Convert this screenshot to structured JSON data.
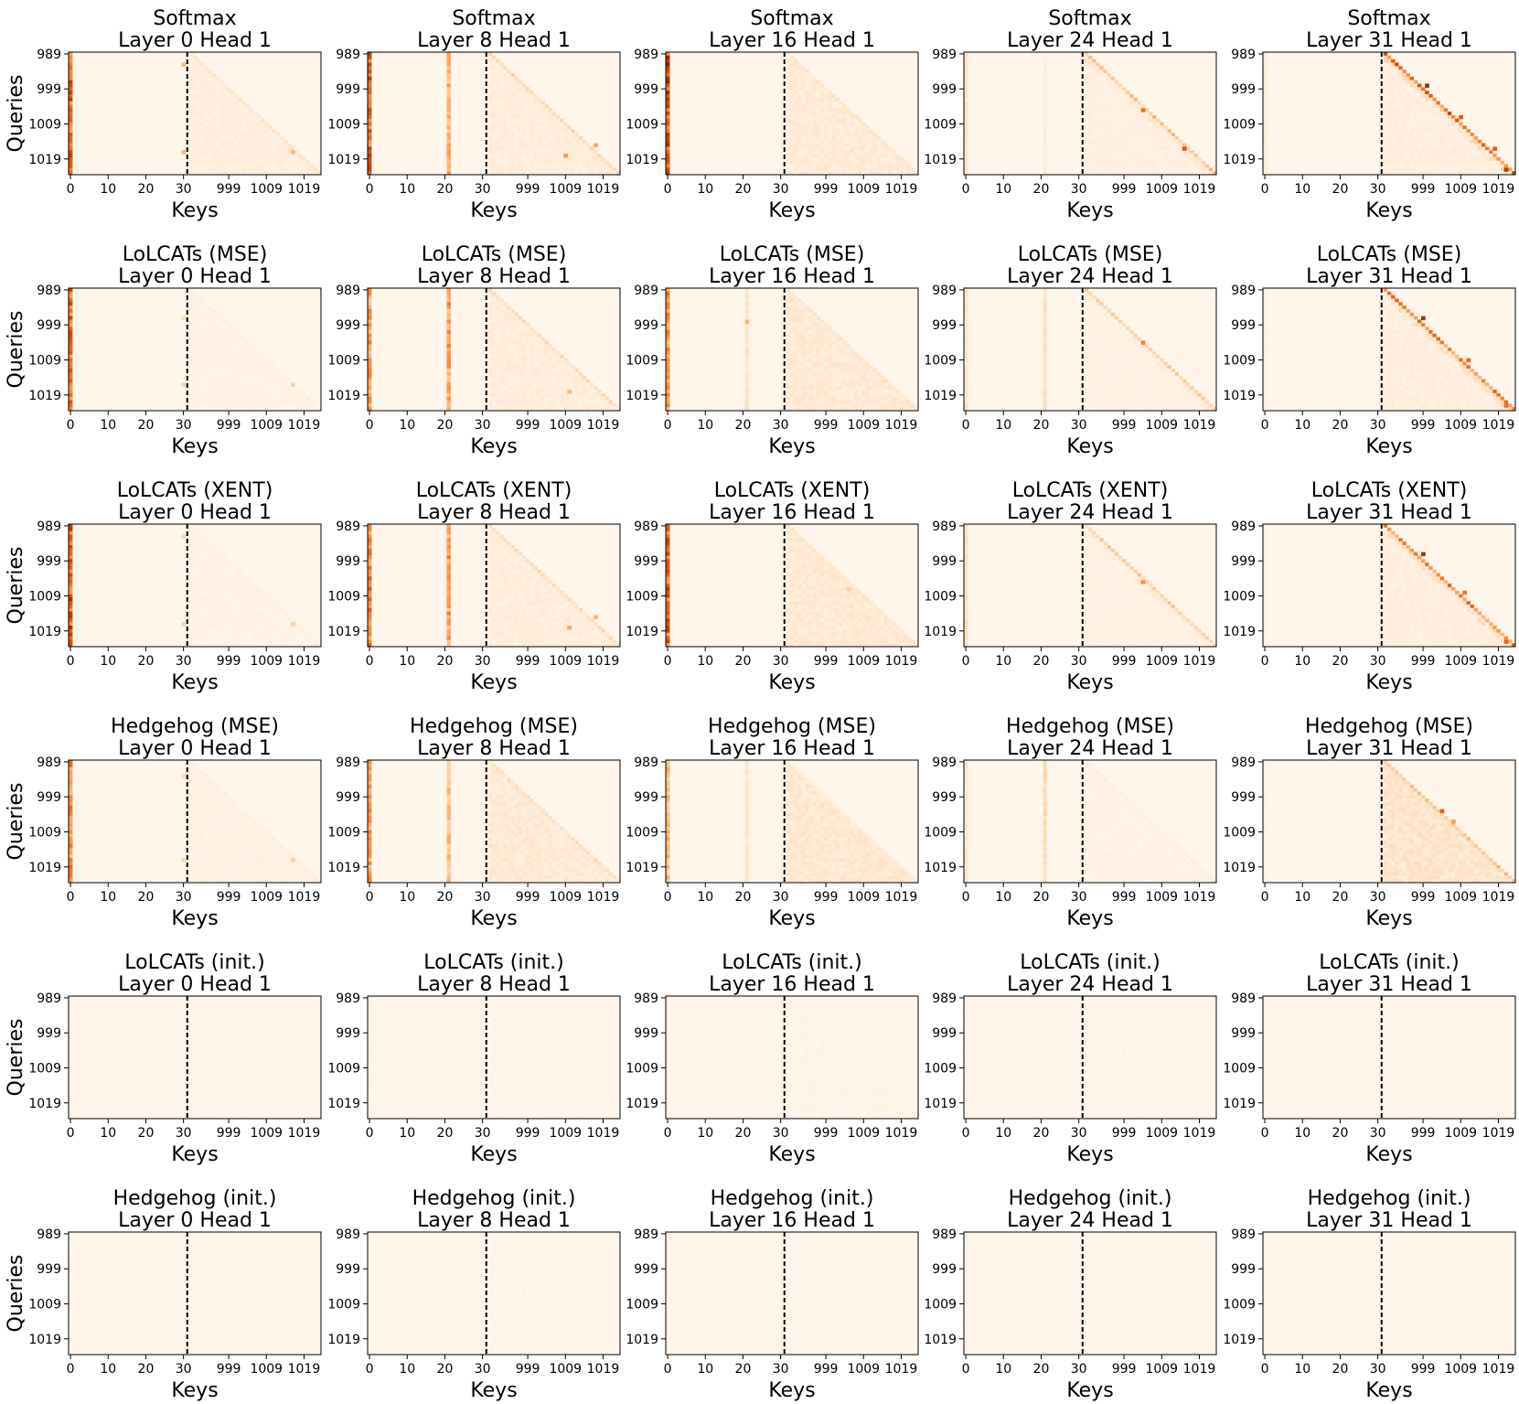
{
  "figure": {
    "colormap": [
      "#fff5eb",
      "#fdd0a2",
      "#fd8d3c",
      "#d94801",
      "#7f2704"
    ],
    "divider_color": "#000000"
  },
  "chart_data": {
    "type": "heatmap",
    "rows": [
      "Softmax",
      "LoLCATs (MSE)",
      "LoLCATs (XENT)",
      "Hedgehog (MSE)",
      "LoLCATs (init.)",
      "Hedgehog (init.)"
    ],
    "cols": [
      "Layer 0 Head 1",
      "Layer 8 Head 1",
      "Layer 16 Head 1",
      "Layer 24 Head 1",
      "Layer 31 Head 1"
    ],
    "xlabel": "Keys",
    "ylabel": "Queries",
    "x_tick_labels": [
      "0",
      "10",
      "20",
      "30",
      "999",
      "1009",
      "1019"
    ],
    "y_tick_labels": [
      "989",
      "999",
      "1009",
      "1019"
    ],
    "key_segments": {
      "sink_keys": [
        0,
        31
      ],
      "recent_keys": [
        989,
        1023
      ]
    },
    "query_range": [
      989,
      1023
    ],
    "divider": "dashed vertical line between sink keys and recent keys",
    "value_scale": "attention weight, 0 (light) to 1 (dark)",
    "panels": [
      [
        {
          "sink": [
            [
              0,
              0.75
            ]
          ],
          "diag": 0.12,
          "spread": 0.05,
          "spots": [
            [
              992,
              30,
              0.35
            ],
            [
              1017,
              30,
              0.35
            ],
            [
              1017,
              1016,
              0.35
            ]
          ]
        },
        {
          "sink": [
            [
              0,
              0.75
            ],
            [
              21,
              0.4
            ]
          ],
          "diag": 0.2,
          "spread": 0.06,
          "spots": [
            [
              1015,
              1017,
              0.4
            ],
            [
              1018,
              1009,
              0.45
            ]
          ]
        },
        {
          "sink": [
            [
              0,
              0.9
            ]
          ],
          "diag": 0.12,
          "spread": 0.08,
          "spots": []
        },
        {
          "sink": [
            [
              0,
              0.12
            ],
            [
              21,
              0.06
            ]
          ],
          "diag": 0.3,
          "spread": 0.04,
          "spots": [
            [
              990,
              32,
              0.95
            ],
            [
              991,
              34,
              0.6
            ],
            [
              1005,
              1004,
              0.6
            ],
            [
              1016,
              1015,
              0.7
            ]
          ]
        },
        {
          "sink": [
            [
              0,
              0.08
            ]
          ],
          "diag": 0.65,
          "spread": 0.05,
          "spots": [
            [
              998,
              1000,
              0.95
            ],
            [
              1007,
              1009,
              0.7
            ],
            [
              1016,
              1018,
              0.7
            ],
            [
              1022,
              1021,
              0.85
            ]
          ]
        }
      ],
      [
        {
          "sink": [
            [
              0,
              0.7
            ]
          ],
          "diag": 0.04,
          "spread": 0.02,
          "spots": [
            [
              997,
              30,
              0.18
            ],
            [
              1016,
              30,
              0.25
            ],
            [
              1016,
              1016,
              0.25
            ]
          ]
        },
        {
          "sink": [
            [
              0,
              0.5
            ],
            [
              21,
              0.5
            ]
          ],
          "diag": 0.18,
          "spread": 0.06,
          "spots": [
            [
              991,
              35,
              0.45
            ],
            [
              1018,
              1010,
              0.35
            ]
          ]
        },
        {
          "sink": [
            [
              0,
              0.55
            ],
            [
              21,
              0.15
            ]
          ],
          "diag": 0.12,
          "spread": 0.09,
          "spots": [
            [
              998,
              21,
              0.35
            ]
          ]
        },
        {
          "sink": [
            [
              0,
              0.12
            ],
            [
              21,
              0.15
            ]
          ],
          "diag": 0.25,
          "spread": 0.03,
          "spots": [
            [
              990,
              32,
              0.95
            ],
            [
              991,
              34,
              0.6
            ],
            [
              1004,
              1004,
              0.55
            ]
          ]
        },
        {
          "sink": [
            [
              0,
              0.05
            ]
          ],
          "diag": 0.55,
          "spread": 0.05,
          "spots": [
            [
              997,
              999,
              0.9
            ],
            [
              1009,
              1011,
              0.65
            ],
            [
              1022,
              1021,
              0.6
            ]
          ]
        }
      ],
      [
        {
          "sink": [
            [
              0,
              0.8
            ]
          ],
          "diag": 0.04,
          "spread": 0.02,
          "spots": [
            [
              992,
              30,
              0.2
            ],
            [
              1017,
              30,
              0.25
            ],
            [
              1017,
              1016,
              0.25
            ]
          ]
        },
        {
          "sink": [
            [
              0,
              0.6
            ],
            [
              21,
              0.5
            ]
          ],
          "diag": 0.18,
          "spread": 0.06,
          "spots": [
            [
              991,
              35,
              0.45
            ],
            [
              1018,
              1010,
              0.4
            ],
            [
              1015,
              1017,
              0.35
            ]
          ]
        },
        {
          "sink": [
            [
              0,
              0.75
            ]
          ],
          "diag": 0.12,
          "spread": 0.09,
          "spots": [
            [
              1007,
              1005,
              0.25
            ]
          ]
        },
        {
          "sink": [
            [
              0,
              0.15
            ]
          ],
          "diag": 0.25,
          "spread": 0.03,
          "spots": [
            [
              990,
              32,
              0.95
            ],
            [
              991,
              34,
              0.6
            ],
            [
              1005,
              1004,
              0.5
            ]
          ]
        },
        {
          "sink": [
            [
              0,
              0.04
            ]
          ],
          "diag": 0.55,
          "spread": 0.05,
          "spots": [
            [
              997,
              999,
              0.9
            ],
            [
              1008,
              1010,
              0.6
            ],
            [
              1022,
              1021,
              0.65
            ]
          ]
        }
      ],
      [
        {
          "sink": [
            [
              0,
              0.55
            ]
          ],
          "diag": 0.05,
          "spread": 0.03,
          "spots": [
            [
              993,
              30,
              0.18
            ],
            [
              1017,
              30,
              0.22
            ],
            [
              1017,
              1016,
              0.25
            ]
          ]
        },
        {
          "sink": [
            [
              0,
              0.5
            ],
            [
              21,
              0.35
            ]
          ],
          "diag": 0.15,
          "spread": 0.09,
          "spots": [
            [
              991,
              35,
              0.6
            ]
          ]
        },
        {
          "sink": [
            [
              0,
              0.4
            ],
            [
              21,
              0.12
            ]
          ],
          "diag": 0.06,
          "spread": 0.1,
          "spots": []
        },
        {
          "sink": [
            [
              0,
              0.1
            ],
            [
              21,
              0.2
            ]
          ],
          "diag": 0.05,
          "spread": 0.02,
          "spots": [
            [
              990,
              32,
              0.9
            ],
            [
              991,
              33,
              0.5
            ]
          ]
        },
        {
          "sink": [
            [
              0,
              0.03
            ]
          ],
          "diag": 0.3,
          "spread": 0.12,
          "spots": [
            [
              1003,
              1004,
              0.65
            ],
            [
              1006,
              1007,
              0.45
            ]
          ]
        }
      ],
      [
        {
          "sink": [
            [
              0,
              0.02
            ]
          ],
          "diag": 0.01,
          "spread": 0.01,
          "spots": []
        },
        {
          "sink": [
            [
              0,
              0.02
            ]
          ],
          "diag": 0.01,
          "spread": 0.01,
          "spots": []
        },
        {
          "sink": [
            [
              0,
              0.02
            ]
          ],
          "diag": 0.015,
          "spread": 0.015,
          "spots": []
        },
        {
          "sink": [
            [
              0,
              0.01
            ]
          ],
          "diag": 0.01,
          "spread": 0.01,
          "spots": []
        },
        {
          "sink": [
            [
              0,
              0.01
            ]
          ],
          "diag": 0.01,
          "spread": 0.01,
          "spots": []
        }
      ],
      [
        {
          "sink": [
            [
              0,
              0.01
            ]
          ],
          "diag": 0.01,
          "spread": 0.01,
          "spots": []
        },
        {
          "sink": [
            [
              0,
              0.01
            ]
          ],
          "diag": 0.01,
          "spread": 0.01,
          "spots": []
        },
        {
          "sink": [
            [
              0,
              0.01
            ]
          ],
          "diag": 0.01,
          "spread": 0.01,
          "spots": []
        },
        {
          "sink": [
            [
              0,
              0.01
            ]
          ],
          "diag": 0.01,
          "spread": 0.01,
          "spots": []
        },
        {
          "sink": [
            [
              0,
              0.01
            ]
          ],
          "diag": 0.01,
          "spread": 0.01,
          "spots": []
        }
      ]
    ]
  }
}
